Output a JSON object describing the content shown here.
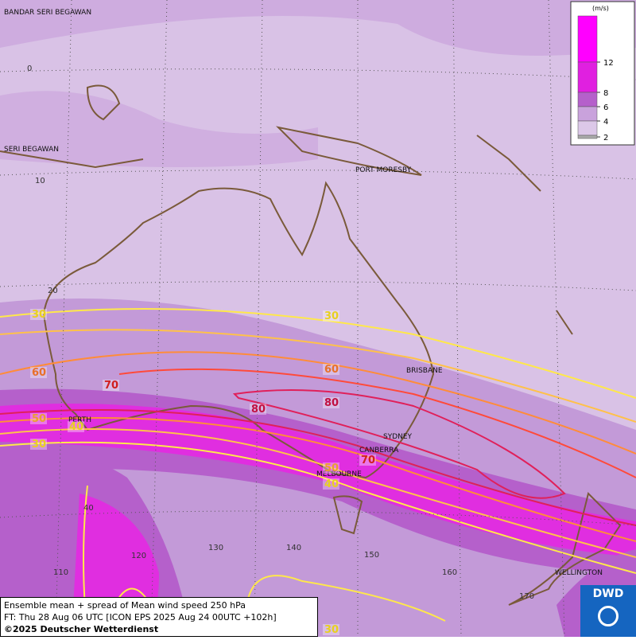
{
  "map": {
    "places": [
      "BANDAR SERI BEGAWAN",
      "SERI BEGAWAN",
      "PORT MORESBY",
      "BRISBANE",
      "SYDNEY",
      "CANBERRA",
      "MELBOURNE",
      "PERTH",
      "WELLINGTON"
    ],
    "lat_labels": [
      0,
      10,
      20,
      40
    ],
    "lon_labels": [
      110,
      120,
      130,
      140,
      150,
      160,
      170
    ],
    "contour_labels": [
      30,
      30,
      60,
      60,
      70,
      80,
      80,
      70,
      50,
      40,
      30,
      50,
      40,
      30
    ],
    "legend": {
      "unit": "(m/s)",
      "ticks": [
        12,
        8,
        6,
        4,
        2
      ]
    },
    "footer": [
      "Ensemble mean + spread of Mean wind speed 250 hPa",
      "FT: Thu 28 Aug 06 UTC [ICON EPS 2025 Aug 24 00UTC +102h]",
      "©2025 Deutscher Wetterdienst"
    ],
    "logo": "DWD"
  }
}
